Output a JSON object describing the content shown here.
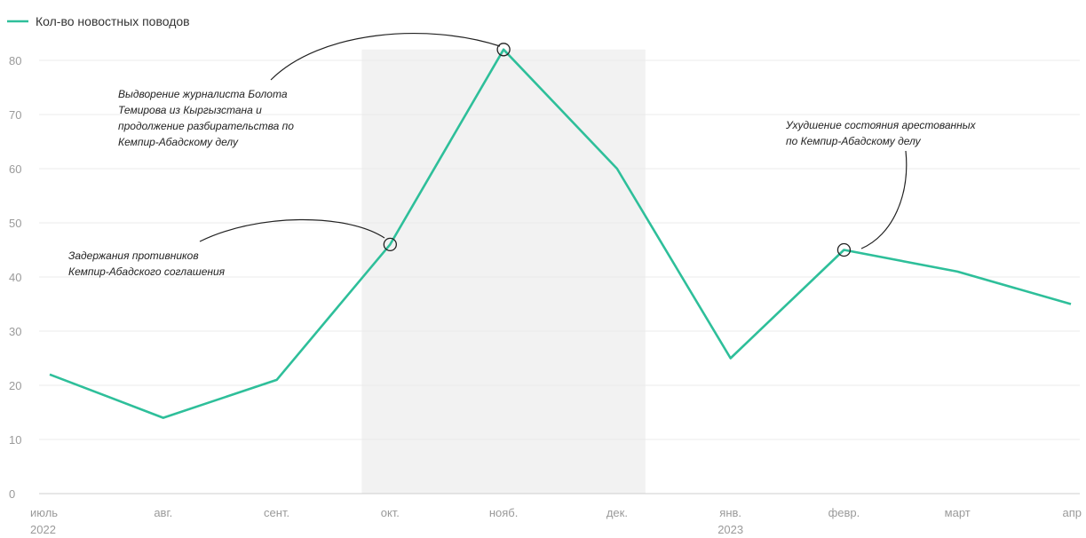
{
  "chart_data": {
    "type": "line",
    "series": [
      {
        "name": "Кол-во новостных поводов",
        "color": "#2ebf9a",
        "values": [
          22,
          14,
          21,
          46,
          82,
          60,
          25,
          45,
          41,
          35
        ]
      }
    ],
    "categories": [
      {
        "label": "июль",
        "sublabel": "2022"
      },
      {
        "label": "авг.",
        "sublabel": ""
      },
      {
        "label": "сент.",
        "sublabel": ""
      },
      {
        "label": "окт.",
        "sublabel": ""
      },
      {
        "label": "нояб.",
        "sublabel": ""
      },
      {
        "label": "дек.",
        "sublabel": ""
      },
      {
        "label": "янв.",
        "sublabel": "2023"
      },
      {
        "label": "февр.",
        "sublabel": ""
      },
      {
        "label": "март",
        "sublabel": ""
      },
      {
        "label": "апр",
        "sublabel": ""
      }
    ],
    "yticks": [
      0,
      10,
      20,
      30,
      40,
      50,
      60,
      70,
      80
    ],
    "ylim": [
      0,
      85
    ],
    "grid": true,
    "legend_position": "top-left",
    "shaded_range": {
      "from_month": "окт.",
      "to_month": "дек.",
      "color": "#f2f2f2"
    },
    "annotations": [
      {
        "point_index": 4,
        "lines": [
          "Выдворение журналиста Болота",
          "Темирова из Кыргызстана и",
          "продолжение разбирательства по",
          "Кемпир-Абадскому делу"
        ]
      },
      {
        "point_index": 3,
        "lines": [
          "Задержания противников",
          "Кемпир-Абадского соглашения"
        ]
      },
      {
        "point_index": 7,
        "lines": [
          "Ухудшение состояния арестованных",
          "по Кемпир-Абадскому делу"
        ]
      }
    ]
  }
}
